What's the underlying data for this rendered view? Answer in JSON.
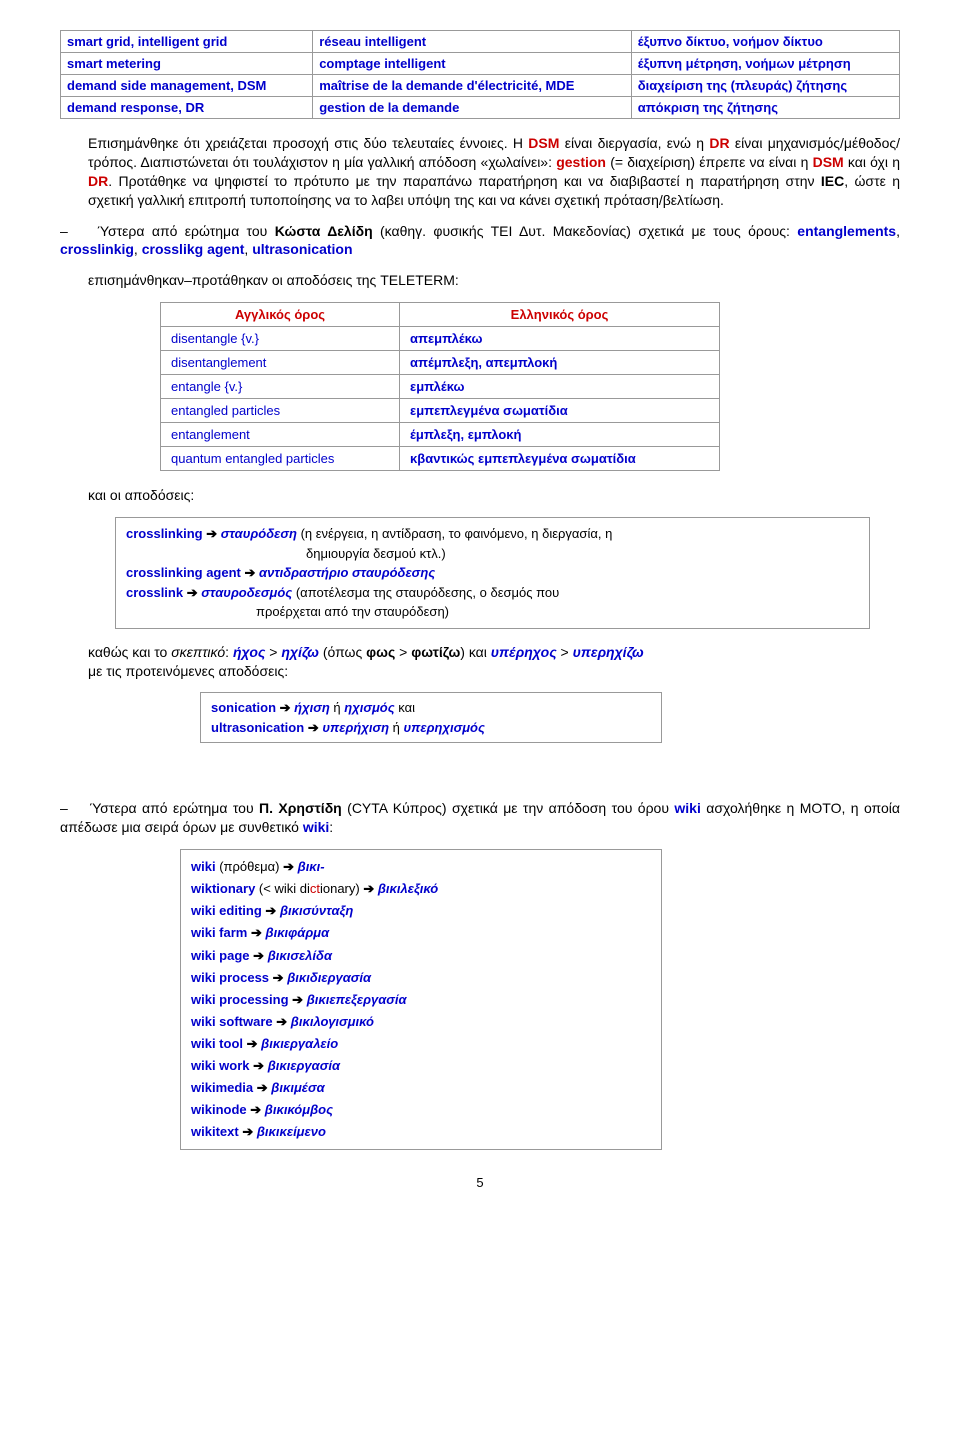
{
  "table1": {
    "rows": [
      {
        "en": "smart grid, intelligent grid",
        "fr": "réseau intelligent",
        "el": "έξυπνο δίκτυο, νοήμον δίκτυο"
      },
      {
        "en": "smart metering",
        "fr": "comptage intelligent",
        "el": "έξυπνη μέτρηση, νοήμων μέτρηση"
      },
      {
        "en": "demand side management, DSM",
        "fr": "maîtrise de la demande d'électricité, MDE",
        "el": "διαχείριση της (πλευράς) ζήτησης"
      },
      {
        "en": "demand response, DR",
        "fr": "gestion de la demande",
        "el": "απόκριση της ζήτησης"
      }
    ]
  },
  "para1": {
    "t1": "Επισημάνθηκε ότι χρειάζεται προσοχή στις δύο τελευταίες έννοιες. Η ",
    "t2": "DSM",
    "t3": " είναι διεργασία, ενώ η ",
    "t4": "DR",
    "t5": " είναι μηχανισμός/μέθοδος/τρόπος. Διαπιστώνεται ότι τουλάχιστον η μία γαλλική απόδοση «χωλαίνει»: ",
    "t6": "gestion",
    "t7": " (= διαχείριση) έπρεπε να είναι η ",
    "t8": "DSM",
    "t9": " και όχι η ",
    "t10": "DR",
    "t11": ". Προτάθηκε να ψηφιστεί το πρότυπο με την παραπάνω παρατήρηση και να διαβιβαστεί η παρατήρηση στην ",
    "t12": "IEC",
    "t13": ", ώστε η σχετική γαλλική επιτροπή τυποποίησης να το λαβει υπόψη της και να κάνει σχετική πρόταση/βελτίωση."
  },
  "para2": {
    "dash": "–",
    "t1": "Ύστερα από ερώτημα του ",
    "t2": "Κώστα Δελίδη",
    "t3": " (καθηγ. φυσικής ΤΕΙ Δυτ. Μακεδονίας) σχετικά με τους όρους: ",
    "t4": "entanglements",
    "t5": ", ",
    "t6": "crosslinkig",
    "t7": ", ",
    "t8": "crosslikg agent",
    "t9": ", ",
    "t10": "ultrasonication"
  },
  "para3": "επισημάνθηκαν–προτάθηκαν οι αποδόσεις της TELETERM:",
  "table2": {
    "h1": "Αγγλικός όρος",
    "h2": "Ελληνικός όρος",
    "rows": [
      {
        "en": "disentangle {v.}",
        "el": "απεμπλέκω"
      },
      {
        "en": "disentanglement",
        "el": "απέμπλεξη, απεμπλοκή"
      },
      {
        "en": "entangle {v.}",
        "el": "εμπλέκω"
      },
      {
        "en": "entangled particles",
        "el": "εμπεπλεγμένα σωματίδια"
      },
      {
        "en": "entanglement",
        "el": "έμπλεξη, εμπλοκή"
      },
      {
        "en": "quantum entangled particles",
        "el": "κβαντικώς εμπεπλεγμένα σωματίδια"
      }
    ]
  },
  "para4": "και οι αποδόσεις:",
  "box1": {
    "l1a": "crosslinking",
    "l1b": "σταυρόδεση",
    "l1c": " (η ενέργεια, η αντίδραση, το φαινόμενο, η διεργασία, η",
    "l1d": "δημιουργία δεσμού κτλ.)",
    "l2a": "crosslinking agent",
    "l2b": "αντιδραστήριο σταυρόδεσης",
    "l3a": "crosslink",
    "l3b": "σταυροδεσμός",
    "l3c": " (αποτέλεσμα της σταυρόδεσης, ο δεσμός που",
    "l3d": "προέρχεται από την σταυρόδεση)"
  },
  "para5": {
    "t1": "καθώς και το ",
    "t2": "σκεπτικό",
    "t3": ": ",
    "t4": "ήχος",
    "t5": " > ",
    "t6": "ηχίζω",
    "t7": " (όπως ",
    "t8": "φως",
    "t9": " > ",
    "t10": "φωτίζω",
    "t11": ") και ",
    "t12": "υπέρηχος",
    "t13": " > ",
    "t14": "υπερηχίζω",
    "t15": "με τις προτεινόμενες αποδόσεις:"
  },
  "box2": {
    "l1a": "sonication",
    "l1b": "ήχιση",
    "l1c": " ή ",
    "l1d": "ηχισμός",
    "l1e": " και",
    "l2a": "ultrasonication",
    "l2b": "υπερήχιση",
    "l2c": " ή ",
    "l2d": "υπερηχισμός"
  },
  "para6": {
    "dash": "–",
    "t1": "Ύστερα από ερώτημα του ",
    "t2": "Π. Χρηστίδη",
    "t3": " (CYTA Κύπρος) σχετικά με την απόδοση του όρου ",
    "t4": "wiki",
    "t5": " ασχολήθηκε η ΜΟΤΟ, η οποία απέδωσε μια σειρά όρων με συνθετικό ",
    "t6": "wiki",
    "t7": ":"
  },
  "box3": {
    "rows": [
      {
        "a": "wiki",
        "mid": " (πρόθεμα) ",
        "b": "βικι-"
      },
      {
        "a": "wiktionary",
        "mid": " (< wiki dictionary) ",
        "b": "βικιλεξικό",
        "dict": true
      },
      {
        "a": "wiki editing",
        "b": "βικισύνταξη"
      },
      {
        "a": "wiki farm",
        "b": "βικιφάρμα"
      },
      {
        "a": "wiki page",
        "b": "βικισελίδα"
      },
      {
        "a": "wiki process",
        "b": "βικιδιεργασία"
      },
      {
        "a": "wiki processing",
        "b": "βικιεπεξεργασία"
      },
      {
        "a": "wiki software",
        "b": "βικιλογισμικό"
      },
      {
        "a": "wiki tool",
        "b": "βικιεργαλείο"
      },
      {
        "a": "wiki work",
        "b": "βικιεργασία"
      },
      {
        "a": "wikimedia",
        "b": "βικιμέσα"
      },
      {
        "a": "wikinode",
        "b": "βικικόμβος"
      },
      {
        "a": "wikitext",
        "b": "βικικείμενο"
      }
    ]
  },
  "pagenum": "5",
  "arrow": "➔"
}
